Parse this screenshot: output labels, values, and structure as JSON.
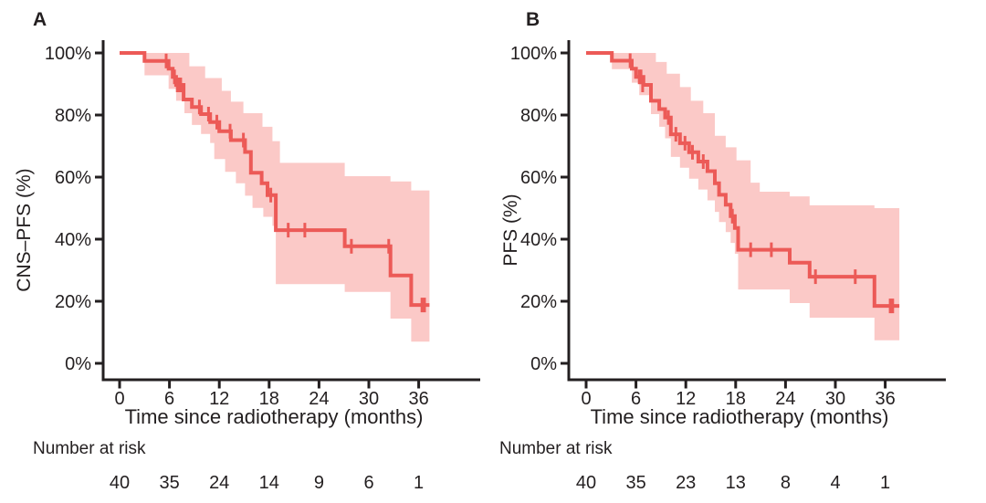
{
  "figure": {
    "background": "#ffffff",
    "axis_color": "#231f20",
    "text_color": "#231f20"
  },
  "chart_data": [
    {
      "type": "line",
      "subtype": "kaplan-meier-step",
      "panel_label": "A",
      "ylabel": "CNS–PFS (%)",
      "xlabel": "Time since radiotherapy (months)",
      "risk_label": "Number at risk",
      "x_ticks": [
        0,
        6,
        12,
        18,
        24,
        30,
        36
      ],
      "y_ticks": [
        "0%",
        "20%",
        "40%",
        "60%",
        "80%",
        "100%"
      ],
      "y_tick_values": [
        0,
        20,
        40,
        60,
        80,
        100
      ],
      "xlim": [
        0,
        39
      ],
      "ylim": [
        0,
        100
      ],
      "grid": false,
      "legend": false,
      "number_at_risk": [
        40,
        35,
        24,
        14,
        9,
        6,
        1
      ],
      "series": [
        {
          "name": "CNS-PFS",
          "color": "#ec5a57",
          "ci_color": "#fbc9c7",
          "steps": [
            [
              0,
              100
            ],
            [
              3.0,
              100
            ],
            [
              3.0,
              97.4
            ],
            [
              5.9,
              97.4
            ],
            [
              5.9,
              94.9
            ],
            [
              6.4,
              94.9
            ],
            [
              6.4,
              92.3
            ],
            [
              6.8,
              92.3
            ],
            [
              6.8,
              89.7
            ],
            [
              7.7,
              89.7
            ],
            [
              7.7,
              85.0
            ],
            [
              8.7,
              85.0
            ],
            [
              8.7,
              82.6
            ],
            [
              9.8,
              82.6
            ],
            [
              9.8,
              80.3
            ],
            [
              10.9,
              80.3
            ],
            [
              10.9,
              77.7
            ],
            [
              12.0,
              77.7
            ],
            [
              12.0,
              74.8
            ],
            [
              13.4,
              74.8
            ],
            [
              13.4,
              71.9
            ],
            [
              15.1,
              71.9
            ],
            [
              15.1,
              68.1
            ],
            [
              15.8,
              68.1
            ],
            [
              15.8,
              61.4
            ],
            [
              17.1,
              61.4
            ],
            [
              17.1,
              58.0
            ],
            [
              17.8,
              58.0
            ],
            [
              17.8,
              54.2
            ],
            [
              18.8,
              54.2
            ],
            [
              18.8,
              42.9
            ],
            [
              27.1,
              42.9
            ],
            [
              27.1,
              37.7
            ],
            [
              32.6,
              37.7
            ],
            [
              32.6,
              28.3
            ],
            [
              35.1,
              28.3
            ],
            [
              35.1,
              18.8
            ],
            [
              37.3,
              18.8
            ]
          ],
          "censors": [
            [
              5.6,
              97.4
            ],
            [
              6.6,
              92.3
            ],
            [
              6.95,
              89.7
            ],
            [
              7.15,
              89.7
            ],
            [
              7.35,
              89.7
            ],
            [
              9.6,
              82.6
            ],
            [
              10.7,
              80.3
            ],
            [
              11.7,
              77.7
            ],
            [
              13.3,
              74.8
            ],
            [
              14.9,
              71.9
            ],
            [
              18.2,
              54.2
            ],
            [
              20.3,
              42.9
            ],
            [
              22.3,
              42.9
            ],
            [
              27.9,
              37.7
            ],
            [
              32.4,
              37.7
            ],
            [
              36.4,
              18.8
            ],
            [
              36.7,
              18.8
            ]
          ],
          "ci_upper": [
            [
              3.0,
              100
            ],
            [
              8.4,
              100
            ],
            [
              8.4,
              95.7
            ],
            [
              10.3,
              95.7
            ],
            [
              10.3,
              91.9
            ],
            [
              12.3,
              91.9
            ],
            [
              12.3,
              87.8
            ],
            [
              13.4,
              87.8
            ],
            [
              13.4,
              84.3
            ],
            [
              14.9,
              84.3
            ],
            [
              14.9,
              80.6
            ],
            [
              17.2,
              80.6
            ],
            [
              17.2,
              76.2
            ],
            [
              18.4,
              76.2
            ],
            [
              18.4,
              71.6
            ],
            [
              19.3,
              71.6
            ],
            [
              19.3,
              64.6
            ],
            [
              27.1,
              64.6
            ],
            [
              27.1,
              60.3
            ],
            [
              32.6,
              60.3
            ],
            [
              32.6,
              58.6
            ],
            [
              35.1,
              58.6
            ],
            [
              35.1,
              55.7
            ],
            [
              37.3,
              55.7
            ]
          ],
          "ci_lower": [
            [
              3.0,
              92.8
            ],
            [
              5.9,
              92.8
            ],
            [
              5.9,
              88.4
            ],
            [
              6.8,
              88.4
            ],
            [
              6.8,
              84.6
            ],
            [
              7.8,
              84.6
            ],
            [
              7.8,
              80.6
            ],
            [
              8.7,
              80.6
            ],
            [
              8.7,
              76.8
            ],
            [
              9.8,
              76.8
            ],
            [
              9.8,
              73.9
            ],
            [
              10.9,
              73.9
            ],
            [
              10.9,
              71.0
            ],
            [
              11.4,
              71.0
            ],
            [
              11.4,
              65.8
            ],
            [
              12.7,
              65.8
            ],
            [
              12.7,
              61.7
            ],
            [
              14.0,
              61.7
            ],
            [
              14.0,
              58.0
            ],
            [
              15.1,
              58.0
            ],
            [
              15.1,
              54.0
            ],
            [
              16.0,
              54.0
            ],
            [
              16.0,
              50.1
            ],
            [
              17.3,
              50.1
            ],
            [
              17.3,
              47.2
            ],
            [
              18.4,
              47.2
            ],
            [
              18.4,
              44.3
            ],
            [
              18.8,
              44.3
            ],
            [
              18.8,
              25.5
            ],
            [
              27.1,
              25.5
            ],
            [
              27.1,
              23.0
            ],
            [
              32.6,
              23.0
            ],
            [
              32.6,
              14.4
            ],
            [
              35.1,
              14.4
            ],
            [
              35.1,
              7.0
            ],
            [
              37.3,
              7.0
            ]
          ]
        }
      ]
    },
    {
      "type": "line",
      "subtype": "kaplan-meier-step",
      "panel_label": "B",
      "ylabel": "PFS (%)",
      "xlabel": "Time since radiotherapy (months)",
      "risk_label": "Number at risk",
      "x_ticks": [
        0,
        6,
        12,
        18,
        24,
        30,
        36
      ],
      "y_ticks": [
        "0%",
        "20%",
        "40%",
        "60%",
        "80%",
        "100%"
      ],
      "y_tick_values": [
        0,
        20,
        40,
        60,
        80,
        100
      ],
      "xlim": [
        0,
        39
      ],
      "ylim": [
        0,
        100
      ],
      "grid": false,
      "legend": false,
      "number_at_risk": [
        40,
        35,
        23,
        13,
        8,
        4,
        1
      ],
      "series": [
        {
          "name": "PFS",
          "color": "#ec5a57",
          "ci_color": "#fbc9c7",
          "steps": [
            [
              0,
              100
            ],
            [
              3.1,
              100
            ],
            [
              3.1,
              97.5
            ],
            [
              5.5,
              97.5
            ],
            [
              5.5,
              94.9
            ],
            [
              6.0,
              94.9
            ],
            [
              6.0,
              92.3
            ],
            [
              6.9,
              92.3
            ],
            [
              6.9,
              89.7
            ],
            [
              7.8,
              89.7
            ],
            [
              7.8,
              84.6
            ],
            [
              8.8,
              84.6
            ],
            [
              8.8,
              81.9
            ],
            [
              9.5,
              81.9
            ],
            [
              9.5,
              79.2
            ],
            [
              10.2,
              79.2
            ],
            [
              10.2,
              73.8
            ],
            [
              11.3,
              73.8
            ],
            [
              11.3,
              70.9
            ],
            [
              12.4,
              70.9
            ],
            [
              12.4,
              68.0
            ],
            [
              13.5,
              68.0
            ],
            [
              13.5,
              65.0
            ],
            [
              14.6,
              65.0
            ],
            [
              14.6,
              61.9
            ],
            [
              15.5,
              61.9
            ],
            [
              15.5,
              58.0
            ],
            [
              16.0,
              58.0
            ],
            [
              16.0,
              54.3
            ],
            [
              16.8,
              54.3
            ],
            [
              16.8,
              51.1
            ],
            [
              17.4,
              51.1
            ],
            [
              17.4,
              47.4
            ],
            [
              17.9,
              47.4
            ],
            [
              17.9,
              43.6
            ],
            [
              18.3,
              43.6
            ],
            [
              18.3,
              36.6
            ],
            [
              24.5,
              36.6
            ],
            [
              24.5,
              32.4
            ],
            [
              26.9,
              32.4
            ],
            [
              26.9,
              27.9
            ],
            [
              34.7,
              27.9
            ],
            [
              34.7,
              18.5
            ],
            [
              37.7,
              18.5
            ]
          ],
          "censors": [
            [
              5.3,
              97.5
            ],
            [
              6.4,
              92.3
            ],
            [
              6.6,
              92.3
            ],
            [
              6.8,
              89.7
            ],
            [
              9.9,
              79.2
            ],
            [
              10.8,
              73.8
            ],
            [
              11.9,
              70.9
            ],
            [
              12.8,
              68.0
            ],
            [
              14.1,
              65.0
            ],
            [
              17.6,
              47.4
            ],
            [
              19.8,
              36.6
            ],
            [
              22.3,
              36.6
            ],
            [
              27.6,
              27.9
            ],
            [
              32.4,
              27.9
            ],
            [
              36.6,
              18.5
            ],
            [
              36.9,
              18.5
            ]
          ],
          "ci_upper": [
            [
              3.1,
              100
            ],
            [
              8.4,
              100
            ],
            [
              8.4,
              97.1
            ],
            [
              9.7,
              97.1
            ],
            [
              9.7,
              93.3
            ],
            [
              11.3,
              93.3
            ],
            [
              11.3,
              89.0
            ],
            [
              12.6,
              89.0
            ],
            [
              12.6,
              84.6
            ],
            [
              14.1,
              84.6
            ],
            [
              14.1,
              80.6
            ],
            [
              15.5,
              80.6
            ],
            [
              15.5,
              73.3
            ],
            [
              16.8,
              73.3
            ],
            [
              16.8,
              69.6
            ],
            [
              18.1,
              69.6
            ],
            [
              18.1,
              65.4
            ],
            [
              19.8,
              65.4
            ],
            [
              19.8,
              58.2
            ],
            [
              20.9,
              58.2
            ],
            [
              20.9,
              55.3
            ],
            [
              24.5,
              55.3
            ],
            [
              24.5,
              53.8
            ],
            [
              26.9,
              53.8
            ],
            [
              26.9,
              50.9
            ],
            [
              34.7,
              50.9
            ],
            [
              34.7,
              50.0
            ],
            [
              37.7,
              50.0
            ]
          ],
          "ci_lower": [
            [
              3.1,
              94.8
            ],
            [
              5.5,
              94.8
            ],
            [
              5.5,
              90.4
            ],
            [
              6.4,
              90.4
            ],
            [
              6.4,
              86.4
            ],
            [
              7.8,
              86.4
            ],
            [
              7.8,
              80.3
            ],
            [
              8.8,
              80.3
            ],
            [
              8.8,
              76.2
            ],
            [
              9.5,
              76.2
            ],
            [
              9.5,
              72.5
            ],
            [
              10.2,
              72.5
            ],
            [
              10.2,
              66.5
            ],
            [
              11.3,
              66.5
            ],
            [
              11.3,
              63.0
            ],
            [
              12.4,
              63.0
            ],
            [
              12.4,
              59.5
            ],
            [
              13.5,
              59.5
            ],
            [
              13.5,
              56.0
            ],
            [
              14.6,
              56.0
            ],
            [
              14.6,
              52.5
            ],
            [
              15.5,
              52.5
            ],
            [
              15.5,
              48.8
            ],
            [
              16.0,
              48.8
            ],
            [
              16.0,
              45.5
            ],
            [
              16.8,
              45.5
            ],
            [
              16.8,
              42.3
            ],
            [
              17.4,
              42.3
            ],
            [
              17.4,
              38.8
            ],
            [
              17.9,
              38.8
            ],
            [
              17.9,
              35.3
            ],
            [
              18.3,
              35.3
            ],
            [
              18.3,
              23.8
            ],
            [
              24.5,
              23.8
            ],
            [
              24.5,
              19.4
            ],
            [
              26.9,
              19.4
            ],
            [
              26.9,
              14.7
            ],
            [
              34.7,
              14.7
            ],
            [
              34.7,
              7.4
            ],
            [
              37.7,
              7.4
            ]
          ]
        }
      ]
    }
  ]
}
